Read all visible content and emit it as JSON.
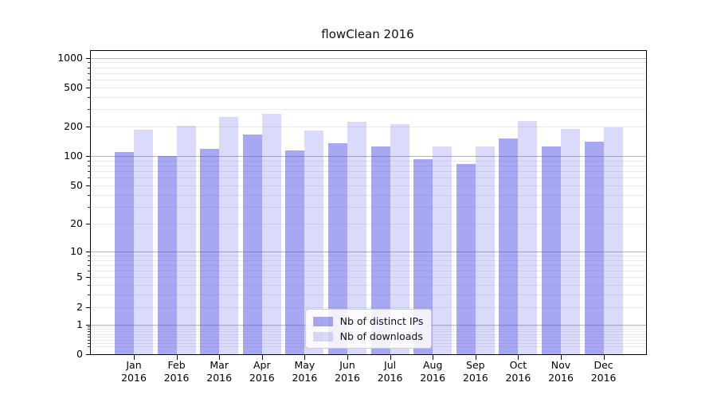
{
  "title": "flowClean 2016",
  "colors": {
    "bar_distinct_ips": "rgba(80,80,230,0.50)",
    "bar_downloads": "rgba(80,80,230,0.21)",
    "grid_major": "#b3b3b3",
    "grid_minor": "#ebebeb",
    "legend_border": "#cccccc"
  },
  "chart_data": {
    "type": "bar",
    "title": "flowClean 2016",
    "categories": [
      {
        "month": "Jan",
        "year": "2016"
      },
      {
        "month": "Feb",
        "year": "2016"
      },
      {
        "month": "Mar",
        "year": "2016"
      },
      {
        "month": "Apr",
        "year": "2016"
      },
      {
        "month": "May",
        "year": "2016"
      },
      {
        "month": "Jun",
        "year": "2016"
      },
      {
        "month": "Jul",
        "year": "2016"
      },
      {
        "month": "Aug",
        "year": "2016"
      },
      {
        "month": "Sep",
        "year": "2016"
      },
      {
        "month": "Oct",
        "year": "2016"
      },
      {
        "month": "Nov",
        "year": "2016"
      },
      {
        "month": "Dec",
        "year": "2016"
      }
    ],
    "series": [
      {
        "name": "Nb of distinct IPs",
        "values": [
          111,
          101,
          119,
          166,
          115,
          135,
          125,
          93,
          84,
          151,
          127,
          142
        ]
      },
      {
        "name": "Nb of downloads",
        "values": [
          186,
          205,
          251,
          269,
          182,
          226,
          211,
          125,
          125,
          228,
          189,
          198
        ]
      }
    ],
    "y_ticks": [
      0,
      1,
      2,
      5,
      10,
      20,
      50,
      100,
      200,
      500,
      1000
    ],
    "y_major_gridlines": [
      1,
      10,
      100,
      1000
    ],
    "scale": "log1p",
    "ylim": [
      0,
      1174
    ],
    "xlabel": "",
    "ylabel": "",
    "grid": "both",
    "legend_position": "lower center"
  }
}
